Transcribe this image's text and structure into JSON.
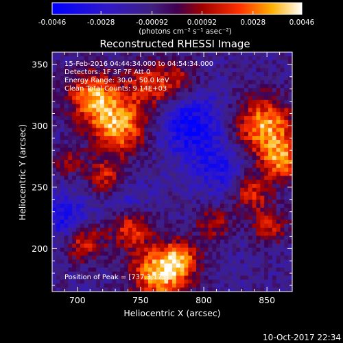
{
  "chart_data": {
    "type": "heatmap",
    "title": "Reconstructed RHESSI Image",
    "xlabel": "Heliocentric X (arcsec)",
    "ylabel": "Heliocentric Y (arcsec)",
    "xlim": [
      680,
      870
    ],
    "ylim": [
      165,
      360
    ],
    "x_ticks": [
      700,
      750,
      800,
      850
    ],
    "y_ticks": [
      200,
      250,
      300,
      350
    ],
    "colorbar": {
      "range": [
        -0.0046,
        0.0046
      ],
      "tick_values": [
        -0.0046,
        -0.0028,
        -0.00092,
        0.00092,
        0.0028,
        0.0046
      ],
      "tick_labels": [
        "-0.0046",
        "-0.0028",
        "-0.00092",
        "0.00092",
        "0.0028",
        "0.0046"
      ],
      "unit_label": "(photons cm⁻² s⁻¹ asec⁻²)"
    },
    "annotations": [
      "15-Feb-2016 04:44:34.000 to 04:54:34.000",
      "Detectors: 1F 3F 7F  Att 0",
      "Energy Range: 30.0 - 50.0 keV",
      "Clean    Total Counts: 9.14E+03"
    ],
    "peak_label": "Position of Peak = [737.3,173]",
    "grid": false,
    "blobs": [
      {
        "x": 732,
        "y": 300,
        "sigma": 16,
        "amp": 0.0048
      },
      {
        "x": 712,
        "y": 325,
        "sigma": 14,
        "amp": 0.0042
      },
      {
        "x": 758,
        "y": 333,
        "sigma": 13,
        "amp": 0.0032
      },
      {
        "x": 782,
        "y": 338,
        "sigma": 10,
        "amp": 0.002
      },
      {
        "x": 722,
        "y": 258,
        "sigma": 10,
        "amp": 0.0028
      },
      {
        "x": 848,
        "y": 300,
        "sigma": 16,
        "amp": 0.0047
      },
      {
        "x": 862,
        "y": 272,
        "sigma": 12,
        "amp": 0.004
      },
      {
        "x": 838,
        "y": 245,
        "sigma": 10,
        "amp": 0.003
      },
      {
        "x": 852,
        "y": 218,
        "sigma": 10,
        "amp": 0.0026
      },
      {
        "x": 742,
        "y": 218,
        "sigma": 11,
        "amp": 0.0036
      },
      {
        "x": 705,
        "y": 205,
        "sigma": 11,
        "amp": 0.0032
      },
      {
        "x": 808,
        "y": 220,
        "sigma": 10,
        "amp": 0.0022
      },
      {
        "x": 765,
        "y": 180,
        "sigma": 16,
        "amp": 0.005
      },
      {
        "x": 782,
        "y": 192,
        "sigma": 10,
        "amp": 0.003
      },
      {
        "x": 692,
        "y": 270,
        "sigma": 8,
        "amp": 0.002
      },
      {
        "x": 790,
        "y": 300,
        "sigma": 18,
        "amp": -0.003
      },
      {
        "x": 812,
        "y": 265,
        "sigma": 14,
        "amp": -0.002
      },
      {
        "x": 740,
        "y": 235,
        "sigma": 12,
        "amp": -0.0016
      },
      {
        "x": 690,
        "y": 225,
        "sigma": 14,
        "amp": -0.0025
      }
    ]
  },
  "footer": {
    "timestamp": "10-Oct-2017 22:34"
  }
}
